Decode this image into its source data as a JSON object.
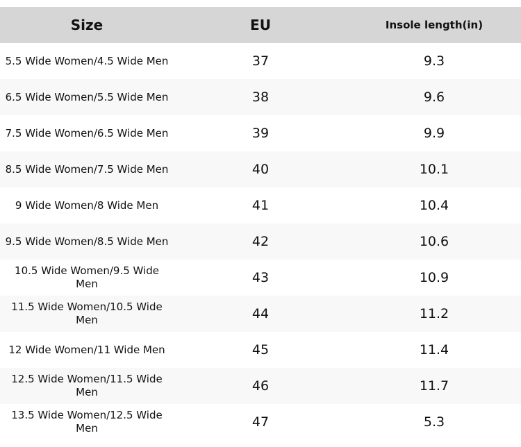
{
  "table": {
    "headers": [
      "Size",
      "EU",
      "Insole length(in)"
    ],
    "rows": [
      [
        "5.5 Wide Women/4.5 Wide Men",
        "37",
        "9.3"
      ],
      [
        "6.5 Wide Women/5.5 Wide Men",
        "38",
        "9.6"
      ],
      [
        "7.5 Wide Women/6.5 Wide Men",
        "39",
        "9.9"
      ],
      [
        "8.5 Wide Women/7.5 Wide Men",
        "40",
        "10.1"
      ],
      [
        "9 Wide Women/8 Wide Men",
        "41",
        "10.4"
      ],
      [
        "9.5 Wide Women/8.5 Wide Men",
        "42",
        "10.6"
      ],
      [
        "10.5 Wide Women/9.5 Wide Men",
        "43",
        "10.9"
      ],
      [
        "11.5 Wide Women/10.5 Wide Men",
        "44",
        "11.2"
      ],
      [
        "12 Wide Women/11 Wide Men",
        "45",
        "11.4"
      ],
      [
        "12.5 Wide Women/11.5 Wide Men",
        "46",
        "11.7"
      ],
      [
        "13.5 Wide Women/12.5 Wide Men",
        "47",
        "5.3"
      ]
    ]
  }
}
